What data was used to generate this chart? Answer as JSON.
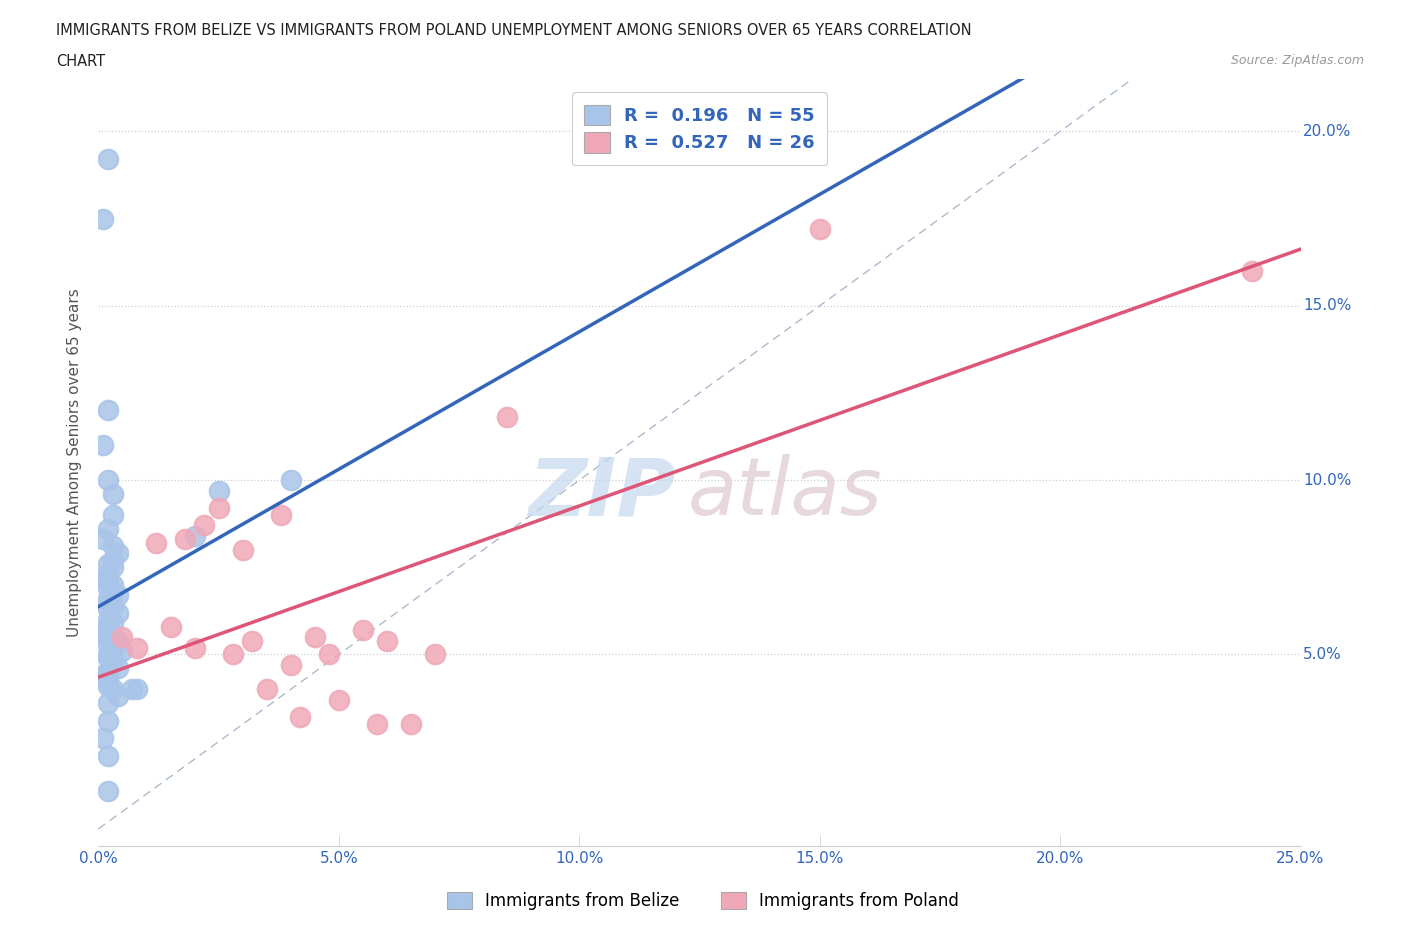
{
  "title_line1": "IMMIGRANTS FROM BELIZE VS IMMIGRANTS FROM POLAND UNEMPLOYMENT AMONG SENIORS OVER 65 YEARS CORRELATION",
  "title_line2": "CHART",
  "source_text": "Source: ZipAtlas.com",
  "ylabel": "Unemployment Among Seniors over 65 years",
  "xlim": [
    0.0,
    0.25
  ],
  "ylim": [
    -0.005,
    0.215
  ],
  "xticks": [
    0.0,
    0.05,
    0.1,
    0.15,
    0.2,
    0.25
  ],
  "yticks": [
    0.0,
    0.05,
    0.1,
    0.15,
    0.2
  ],
  "xtick_labels": [
    "0.0%",
    "5.0%",
    "10.0%",
    "15.0%",
    "20.0%",
    "25.0%"
  ],
  "ytick_labels": [
    "",
    "5.0%",
    "10.0%",
    "15.0%",
    "20.0%"
  ],
  "belize_color": "#a8c4e8",
  "poland_color": "#f0a8b8",
  "belize_trend_color": "#3366bb",
  "poland_trend_color": "#dd5577",
  "diagonal_color": "#aabbcc",
  "belize_R": 0.196,
  "belize_N": 55,
  "poland_R": 0.527,
  "poland_N": 26,
  "legend_label_belize": "Immigrants from Belize",
  "legend_label_poland": "Immigrants from Poland",
  "belize_x": [
    0.002,
    0.001,
    0.002,
    0.001,
    0.002,
    0.003,
    0.003,
    0.002,
    0.001,
    0.003,
    0.004,
    0.003,
    0.002,
    0.003,
    0.002,
    0.001,
    0.002,
    0.003,
    0.002,
    0.003,
    0.004,
    0.002,
    0.002,
    0.003,
    0.002,
    0.004,
    0.002,
    0.003,
    0.002,
    0.001,
    0.002,
    0.004,
    0.002,
    0.003,
    0.005,
    0.002,
    0.002,
    0.003,
    0.004,
    0.002,
    0.001,
    0.002,
    0.002,
    0.003,
    0.004,
    0.002,
    0.002,
    0.001,
    0.002,
    0.002,
    0.025,
    0.04,
    0.02,
    0.007,
    0.008
  ],
  "belize_y": [
    0.192,
    0.175,
    0.12,
    0.11,
    0.1,
    0.096,
    0.09,
    0.086,
    0.083,
    0.081,
    0.079,
    0.077,
    0.076,
    0.075,
    0.073,
    0.072,
    0.071,
    0.07,
    0.069,
    0.068,
    0.067,
    0.066,
    0.065,
    0.064,
    0.063,
    0.062,
    0.06,
    0.059,
    0.058,
    0.056,
    0.055,
    0.054,
    0.053,
    0.052,
    0.051,
    0.05,
    0.049,
    0.048,
    0.046,
    0.045,
    0.044,
    0.043,
    0.041,
    0.04,
    0.038,
    0.036,
    0.031,
    0.026,
    0.021,
    0.011,
    0.097,
    0.1,
    0.084,
    0.04,
    0.04
  ],
  "poland_x": [
    0.005,
    0.008,
    0.012,
    0.015,
    0.018,
    0.02,
    0.022,
    0.025,
    0.028,
    0.03,
    0.032,
    0.035,
    0.038,
    0.04,
    0.042,
    0.045,
    0.048,
    0.05,
    0.055,
    0.058,
    0.06,
    0.065,
    0.07,
    0.15,
    0.24,
    0.085
  ],
  "poland_y": [
    0.055,
    0.052,
    0.082,
    0.058,
    0.083,
    0.052,
    0.087,
    0.092,
    0.05,
    0.08,
    0.054,
    0.04,
    0.09,
    0.047,
    0.032,
    0.055,
    0.05,
    0.037,
    0.057,
    0.03,
    0.054,
    0.03,
    0.05,
    0.172,
    0.16,
    0.118
  ]
}
